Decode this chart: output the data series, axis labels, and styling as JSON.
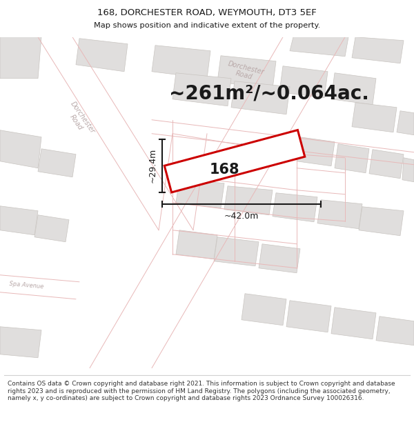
{
  "title_line1": "168, DORCHESTER ROAD, WEYMOUTH, DT3 5EF",
  "title_line2": "Map shows position and indicative extent of the property.",
  "area_text": "~261m²/~0.064ac.",
  "width_label": "~42.0m",
  "height_label": "~29.4m",
  "property_number": "168",
  "footer_text": "Contains OS data © Crown copyright and database right 2021. This information is subject to Crown copyright and database rights 2023 and is reproduced with the permission of HM Land Registry. The polygons (including the associated geometry, namely x, y co-ordinates) are subject to Crown copyright and database rights 2023 Ordnance Survey 100026316.",
  "map_bg": "#f5f4f2",
  "road_line_color": "#e8b8b8",
  "building_fill": "#e0dedd",
  "building_edge": "#c8c4c0",
  "property_color": "#cc0000",
  "dim_color": "#1a1a1a",
  "text_color": "#1a1a1a",
  "street_label_color": "#b8a8a8",
  "title_fontsize": 9.5,
  "subtitle_fontsize": 8.2,
  "area_fontsize": 20,
  "dim_fontsize": 9,
  "number_fontsize": 15,
  "footer_fontsize": 6.5
}
